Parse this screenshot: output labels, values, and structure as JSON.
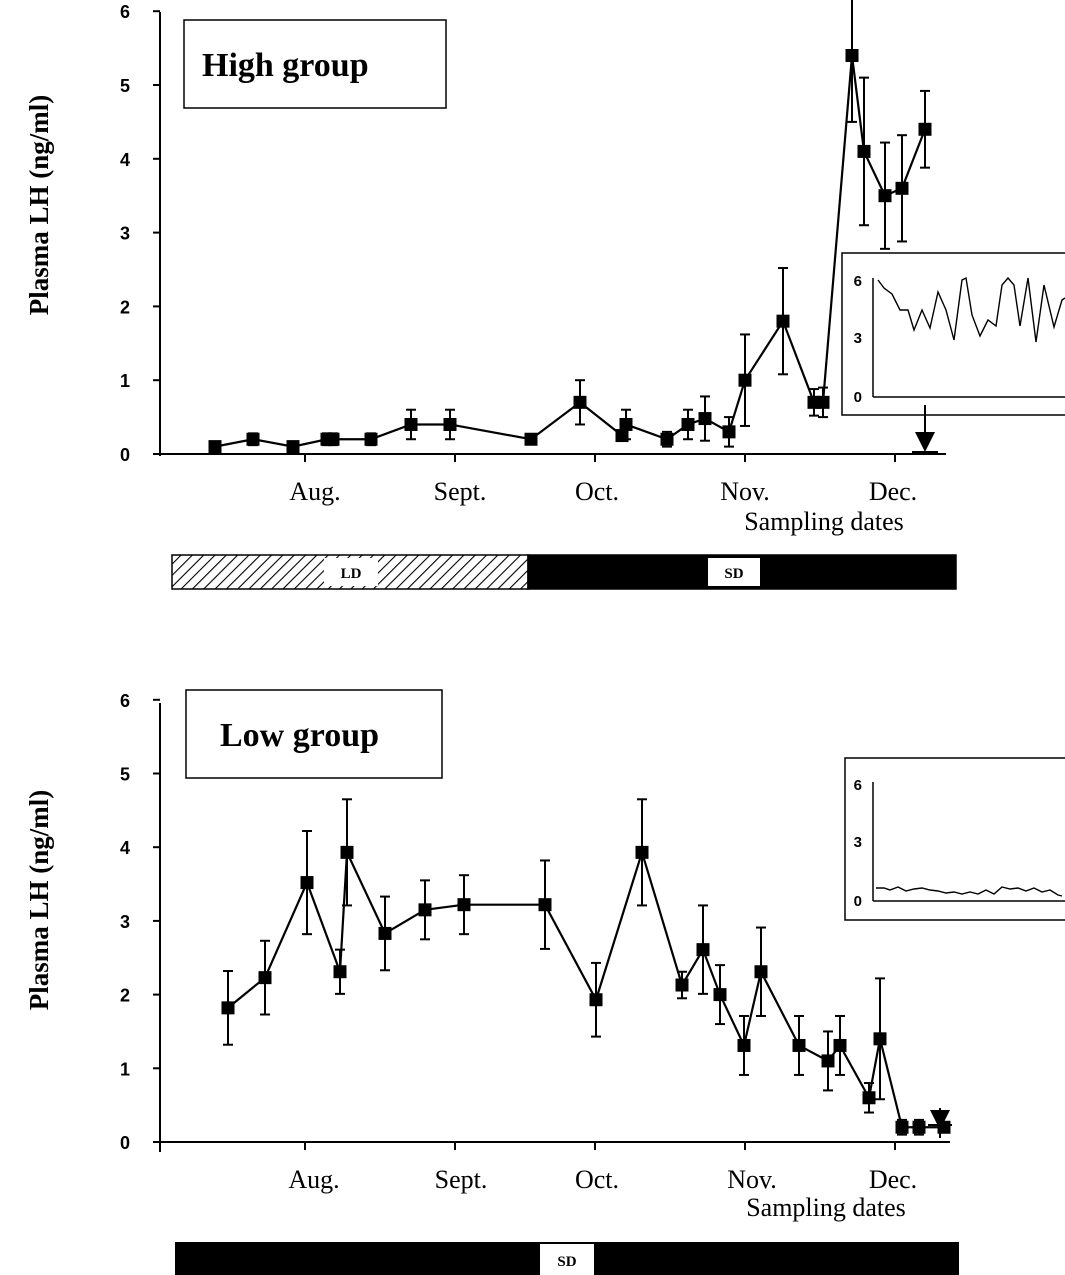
{
  "chart_data": [
    {
      "type": "line",
      "label": "High group",
      "ylabel": "Plasma LH (ng/ml)",
      "xlabel": "Sampling dates",
      "x_ticks": [
        "Aug.",
        "Sept.",
        "Oct.",
        "Nov.",
        "Dec."
      ],
      "y_ticks": [
        "0",
        "1",
        "2",
        "3",
        "4",
        "5",
        "6"
      ],
      "ylim": [
        0,
        6
      ],
      "series": [
        {
          "values": [
            0.1,
            0.2,
            0.1,
            0.2,
            0.2,
            0.2,
            0.4,
            0.4,
            0.2,
            0.7,
            0.25,
            0.4,
            0.2,
            0.4,
            0.48,
            0.3,
            1.0,
            1.8,
            0.7,
            0.7,
            5.4,
            4.1,
            3.5,
            3.6,
            4.4
          ],
          "errors": [
            0,
            0.08,
            0,
            0.08,
            0.08,
            0.08,
            0.2,
            0.2,
            0,
            0.3,
            0,
            0.2,
            0.1,
            0.2,
            0.3,
            0.2,
            0.62,
            0.72,
            0.18,
            0.2,
            0.9,
            1.0,
            0.72,
            0.72,
            0.52
          ]
        }
      ],
      "photoperiod_bar": [
        "LD",
        "SD"
      ],
      "inset": {
        "y_ticks": [
          "0",
          "3",
          "6"
        ]
      }
    },
    {
      "type": "line",
      "label": "Low group",
      "ylabel": "Plasma LH (ng/ml)",
      "xlabel": "Sampling dates",
      "x_ticks": [
        "Aug.",
        "Sept.",
        "Oct.",
        "Nov.",
        "Dec."
      ],
      "y_ticks": [
        "0",
        "1",
        "2",
        "3",
        "4",
        "5",
        "6"
      ],
      "ylim": [
        0,
        6
      ],
      "series": [
        {
          "values": [
            1.82,
            2.23,
            3.52,
            2.31,
            3.93,
            2.83,
            3.15,
            3.22,
            3.22,
            1.93,
            3.93,
            2.13,
            2.61,
            2.0,
            1.31,
            2.31,
            1.31,
            1.1,
            1.31,
            0.6,
            1.4,
            0.2,
            0.2,
            0.2
          ],
          "errors": [
            0.5,
            0.5,
            0.7,
            0.3,
            0.72,
            0.5,
            0.4,
            0.4,
            0.6,
            0.5,
            0.72,
            0.18,
            0.6,
            0.4,
            0.4,
            0.6,
            0.4,
            0.4,
            0.4,
            0.2,
            0.82,
            0.1,
            0.1,
            0
          ]
        }
      ],
      "photoperiod_bar": [
        "SD"
      ],
      "inset": {
        "y_ticks": [
          "0",
          "3",
          "6"
        ]
      }
    }
  ]
}
